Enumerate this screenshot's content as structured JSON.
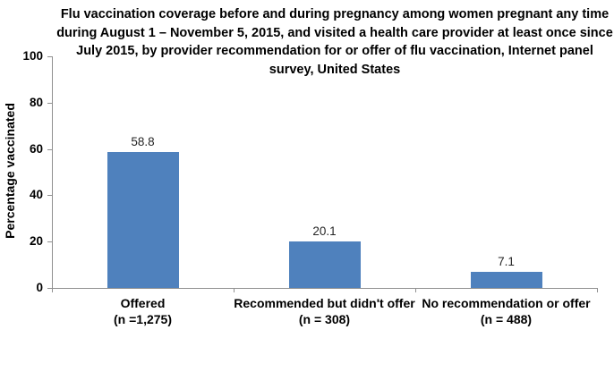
{
  "title": {
    "lines": [
      "Flu vaccination coverage before and during pregnancy among women pregnant any time",
      "during August 1 – November 5, 2015, and visited a health care provider at least once since",
      "July 2015, by provider recommendation for or offer of flu vaccination, Internet panel",
      "survey, United States"
    ]
  },
  "chart_data": {
    "type": "bar",
    "title": "Flu vaccination coverage before and during pregnancy among women pregnant any time during August 1 – November 5, 2015, and visited a health care provider at least once since July 2015, by provider recommendation for or offer of flu vaccination, Internet panel survey, United States",
    "categories": [
      "Offered (n =1,275)",
      "Recommended but didn't offer (n = 308)",
      "No recommendation or offer (n = 488)"
    ],
    "category_lines": [
      [
        "Offered",
        "(n =1,275)"
      ],
      [
        "Recommended but didn't offer",
        "(n = 308)"
      ],
      [
        "No recommendation or offer",
        "(n = 488)"
      ]
    ],
    "values": [
      58.8,
      20.1,
      7.1
    ],
    "value_labels": [
      "58.8",
      "20.1",
      "7.1"
    ],
    "xlabel": "",
    "ylabel": "Percentage vaccinated",
    "ylim": [
      0,
      100
    ],
    "yticks": [
      0,
      20,
      40,
      60,
      80,
      100
    ],
    "grid": false,
    "legend": "none",
    "bar_color": "#4F81BD",
    "axis_color": "#909090",
    "value_label_color": "#262626",
    "text_color": "#000000"
  }
}
